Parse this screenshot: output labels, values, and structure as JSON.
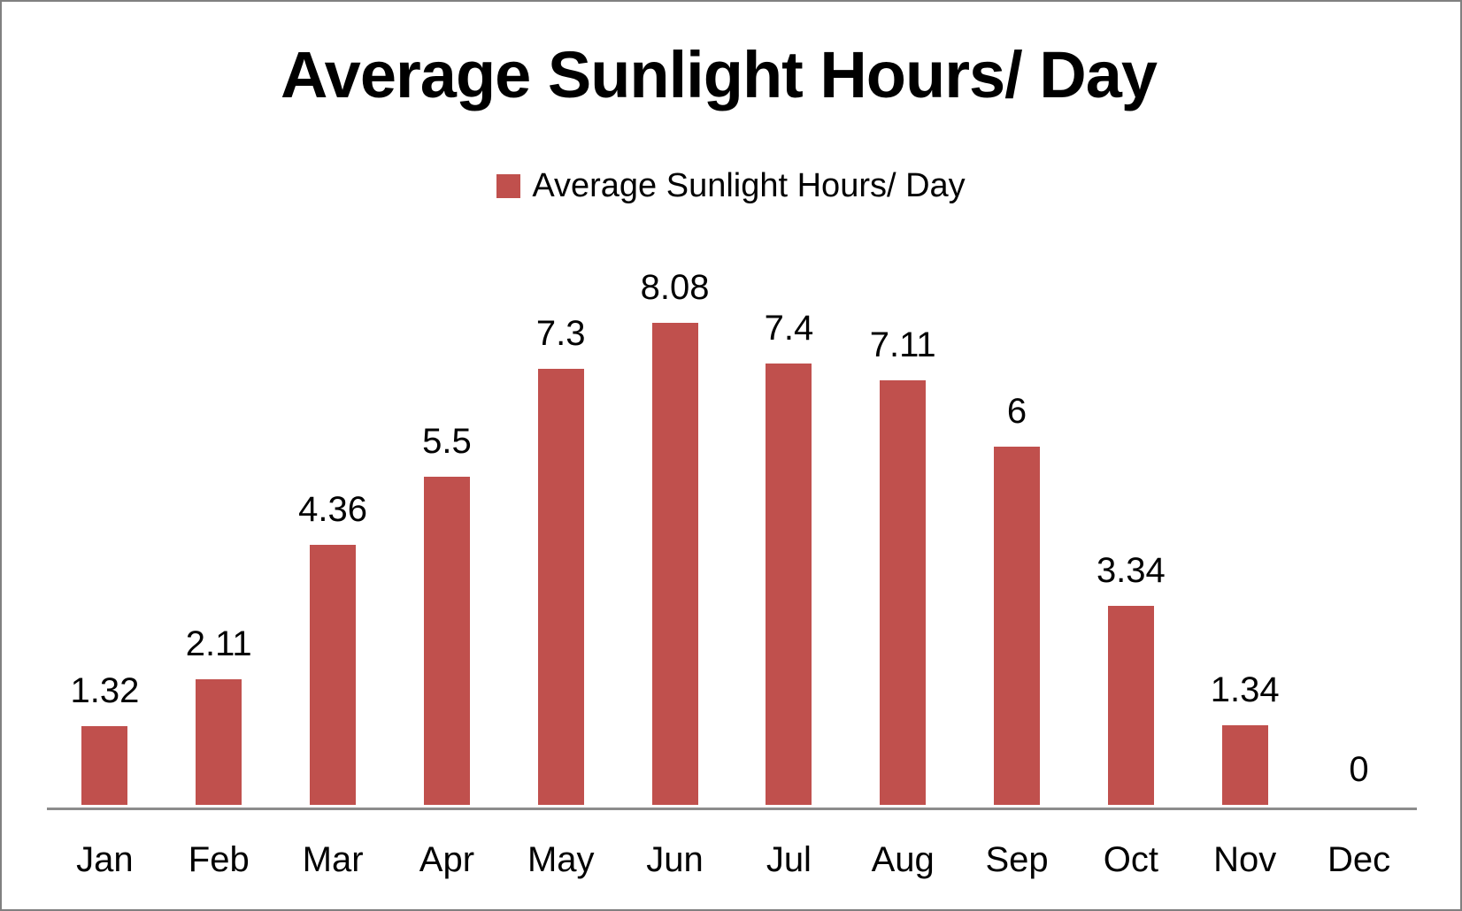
{
  "chart": {
    "title": "Average Sunlight Hours/ Day",
    "legend_label": "Average Sunlight Hours/ Day"
  },
  "colors": {
    "bar": "#C0504D",
    "axis_line": "#8C8C8C",
    "page_border": "#808080",
    "background": "#FFFFFF",
    "text": "#000000"
  },
  "chart_data": {
    "type": "bar",
    "title": "Average Sunlight Hours/ Day",
    "categories": [
      "Jan",
      "Feb",
      "Mar",
      "Apr",
      "May",
      "Jun",
      "Jul",
      "Aug",
      "Sep",
      "Oct",
      "Nov",
      "Dec"
    ],
    "series": [
      {
        "name": "Average Sunlight Hours/ Day",
        "values": [
          1.32,
          2.11,
          4.36,
          5.5,
          7.3,
          8.08,
          7.4,
          7.11,
          6,
          3.34,
          1.34,
          0
        ]
      }
    ],
    "data_labels": [
      "1.32",
      "2.11",
      "4.36",
      "5.5",
      "7.3",
      "8.08",
      "7.4",
      "7.11",
      "6",
      "3.34",
      "1.34",
      "0"
    ],
    "xlabel": "",
    "ylabel": "",
    "ylim": [
      0,
      8.5
    ],
    "grid": false,
    "y_axis_visible": false,
    "legend_position": "top-center",
    "data_labels_position": "above-bar"
  }
}
